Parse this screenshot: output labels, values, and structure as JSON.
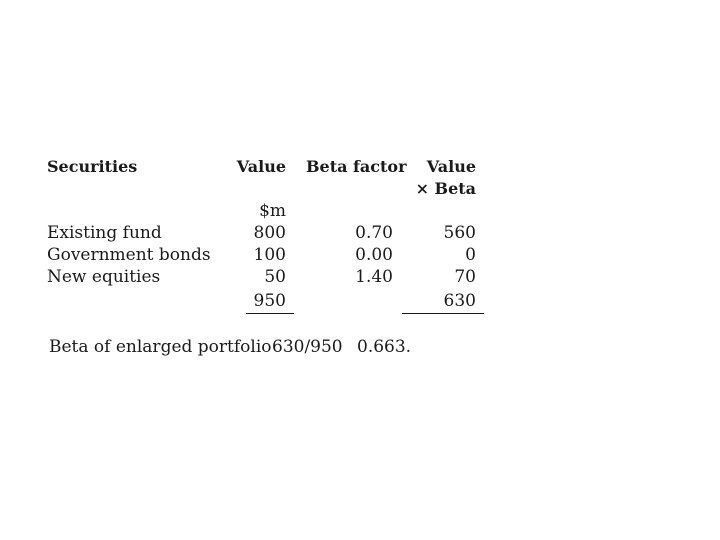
{
  "table": {
    "headers": {
      "securities": "Securities",
      "value": "Value",
      "beta_factor": "Beta factor",
      "value_x_beta_line1": "Value",
      "value_x_beta_line2": "× Beta"
    },
    "unit": "$m",
    "rows": [
      {
        "security": "Existing fund",
        "value": "800",
        "beta": "0.70",
        "value_x_beta": "560"
      },
      {
        "security": "Government bonds",
        "value": "100",
        "beta": "0.00",
        "value_x_beta": "0"
      },
      {
        "security": "New equities",
        "value": "50",
        "beta": "1.40",
        "value_x_beta": "70"
      }
    ],
    "totals": {
      "value": "950",
      "value_x_beta": "630"
    }
  },
  "result": {
    "label": "Beta of enlarged portfolio",
    "calculation": "630/950",
    "value": "0.663."
  }
}
